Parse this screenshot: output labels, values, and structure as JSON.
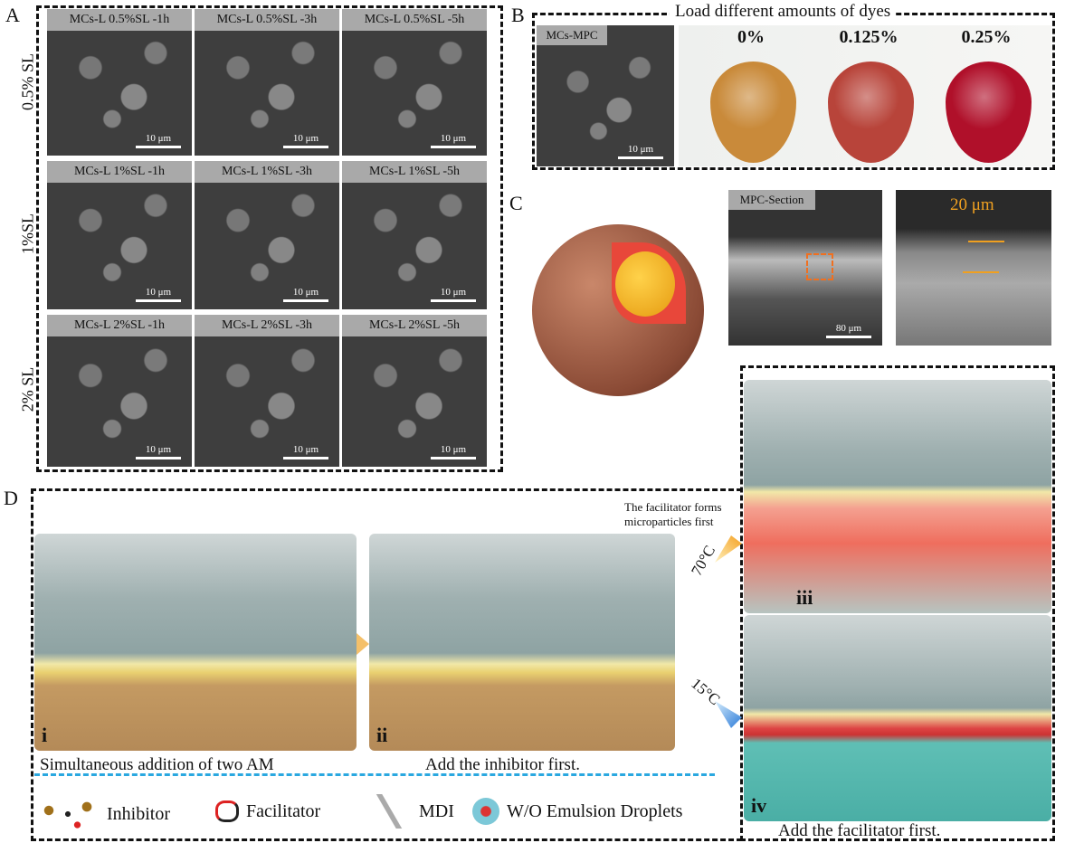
{
  "panel_a": {
    "label": "A",
    "row_labels": [
      "0.5% SL",
      "1%SL",
      "2% SL"
    ],
    "cells": [
      [
        "MCs-L 0.5%SL -1h",
        "MCs-L 0.5%SL -3h",
        "MCs-L 0.5%SL -5h"
      ],
      [
        "MCs-L 1%SL -1h",
        "MCs-L 1%SL -3h",
        "MCs-L 1%SL -5h"
      ],
      [
        "MCs-L 2%SL -1h",
        "MCs-L 2%SL -3h",
        "MCs-L 2%SL -5h"
      ]
    ],
    "scale_bar": "10 μm"
  },
  "panel_b": {
    "label": "B",
    "title": "Load different amounts of dyes",
    "sem_label": "MCs-MPC",
    "scale_bar": "10 μm",
    "tubes": [
      {
        "label": "0%",
        "color": "#c98a3a"
      },
      {
        "label": "0.125%",
        "color": "#b8443a"
      },
      {
        "label": "0.25%",
        "color": "#b0102a"
      }
    ]
  },
  "panel_c": {
    "label": "C",
    "section_label": "MPC-Section",
    "section_scale": "80 μm",
    "thickness": "20 μm",
    "accent": "#f0a020"
  },
  "panel_d": {
    "label": "D",
    "scenes": [
      {
        "numeral": "i",
        "caption": "Simultaneous addition of two AM"
      },
      {
        "numeral": "ii",
        "caption": "Add the inhibitor first."
      },
      {
        "numeral": "iii",
        "temperature": "70°C",
        "annotation_line1": "The facilitator forms",
        "annotation_line2": "microparticles first"
      },
      {
        "numeral": "iv",
        "temperature": "15°C",
        "caption": "Add the facilitator first."
      }
    ],
    "legend": [
      "Inhibitor",
      "Facilitator",
      "MDI",
      "W/O Emulsion Droplets"
    ]
  }
}
